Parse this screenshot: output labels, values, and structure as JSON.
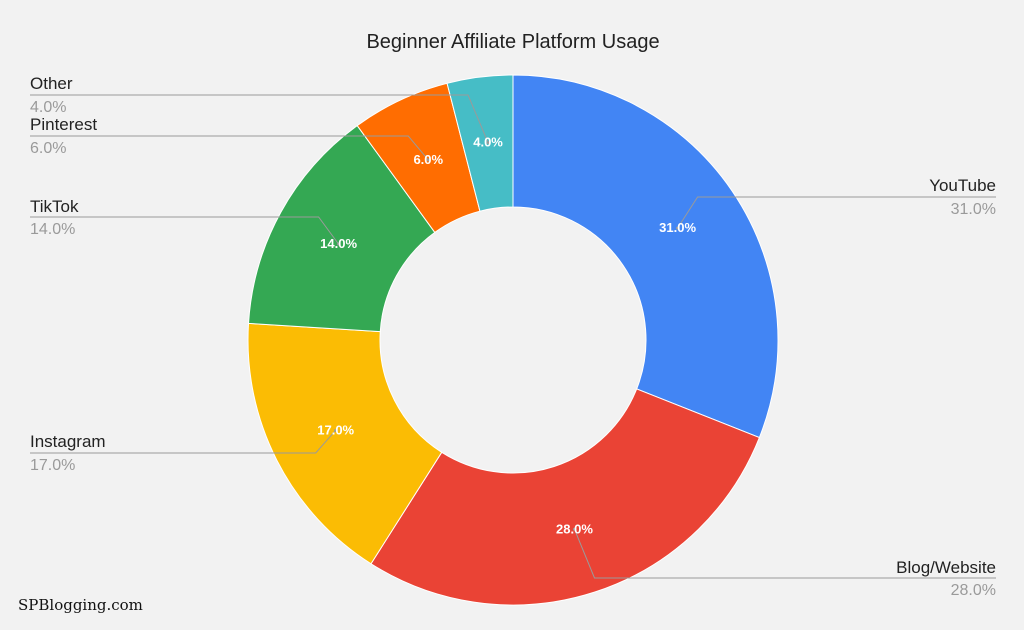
{
  "chart_data": {
    "type": "pie",
    "variant": "donut",
    "title": "Beginner Affiliate Platform Usage",
    "legend": "none",
    "slices": [
      {
        "label": "YouTube",
        "value": 31.0,
        "value_label": "31.0%",
        "color": "#4285F4",
        "side": "right"
      },
      {
        "label": "Blog/Website",
        "value": 28.0,
        "value_label": "28.0%",
        "color": "#EA4335",
        "side": "right"
      },
      {
        "label": "Instagram",
        "value": 17.0,
        "value_label": "17.0%",
        "color": "#FBBC04",
        "side": "left"
      },
      {
        "label": "TikTok",
        "value": 14.0,
        "value_label": "14.0%",
        "color": "#34A853",
        "side": "left"
      },
      {
        "label": "Pinterest",
        "value": 6.0,
        "value_label": "6.0%",
        "color": "#FF6D01",
        "side": "left"
      },
      {
        "label": "Other",
        "value": 4.0,
        "value_label": "4.0%",
        "color": "#46BDC6",
        "side": "left"
      }
    ]
  },
  "watermark": "SPBlogging.com"
}
